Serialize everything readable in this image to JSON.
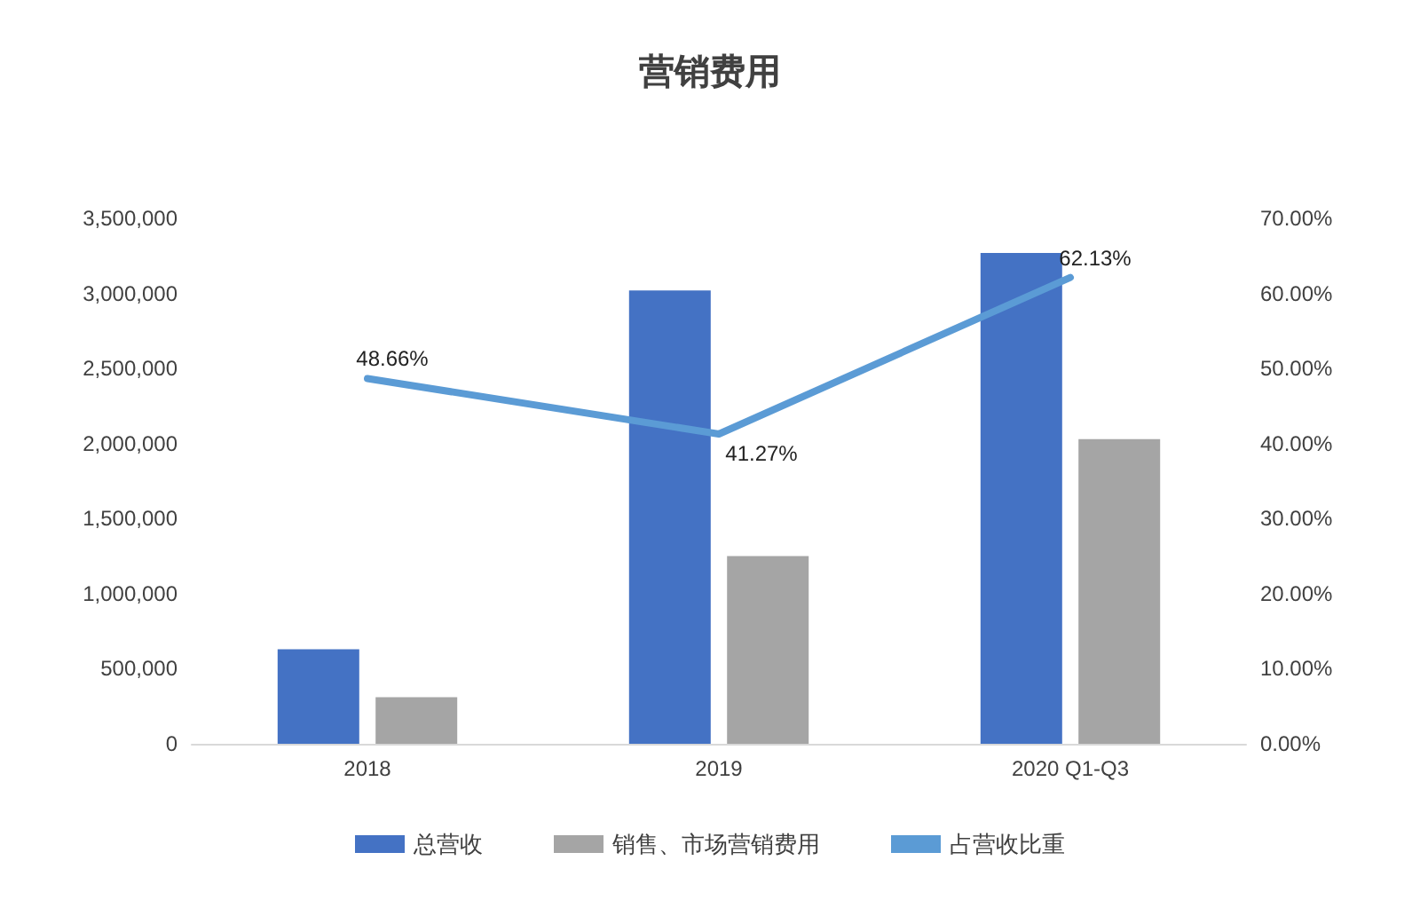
{
  "chart_data": {
    "type": "bar",
    "title": "营销费用",
    "categories": [
      "2018",
      "2019",
      "2020 Q1-Q3"
    ],
    "series": [
      {
        "name": "总营收",
        "color": "#4472c4",
        "values": [
          630000,
          3020000,
          3270000
        ]
      },
      {
        "name": "销售、市场营销费用",
        "color": "#a5a5a5",
        "values": [
          310000,
          1250000,
          2030000
        ]
      },
      {
        "name": "占营收比重",
        "type": "line",
        "axis": "y2",
        "color": "#5b9bd5",
        "values": [
          48.66,
          41.27,
          62.13
        ],
        "value_labels": [
          "48.66%",
          "41.27%",
          "62.13%"
        ]
      }
    ],
    "ylim": [
      0,
      3500000
    ],
    "yticks": [
      {
        "value": 0,
        "label": "0"
      },
      {
        "value": 500000,
        "label": "500,000"
      },
      {
        "value": 1000000,
        "label": "1,000,000"
      },
      {
        "value": 1500000,
        "label": "1,500,000"
      },
      {
        "value": 2000000,
        "label": "2,000,000"
      },
      {
        "value": 2500000,
        "label": "2,500,000"
      },
      {
        "value": 3000000,
        "label": "3,000,000"
      },
      {
        "value": 3500000,
        "label": "3,500,000"
      }
    ],
    "y2lim": [
      0,
      70
    ],
    "y2ticks": [
      {
        "value": 0,
        "label": "0.00%"
      },
      {
        "value": 10,
        "label": "10.00%"
      },
      {
        "value": 20,
        "label": "20.00%"
      },
      {
        "value": 30,
        "label": "30.00%"
      },
      {
        "value": 40,
        "label": "40.00%"
      },
      {
        "value": 50,
        "label": "50.00%"
      },
      {
        "value": 60,
        "label": "60.00%"
      },
      {
        "value": 70,
        "label": "70.00%"
      }
    ],
    "grid": false,
    "legend": "bottom",
    "marker": "none",
    "line_style": "solid"
  }
}
